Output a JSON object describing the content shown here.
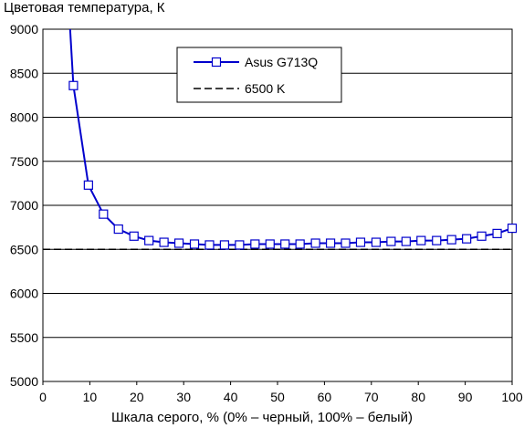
{
  "chart_data": {
    "type": "line",
    "title": "Цветовая температура, К",
    "xlabel": "Шкала серого, % (0% – черный, 100% – белый)",
    "ylabel": "",
    "xlim": [
      0,
      100
    ],
    "ylim": [
      5000,
      9000
    ],
    "xticks": [
      0,
      10,
      20,
      30,
      40,
      50,
      60,
      70,
      80,
      90,
      100
    ],
    "yticks": [
      5000,
      5500,
      6000,
      6500,
      7000,
      7500,
      8000,
      8500,
      9000
    ],
    "grid": "horizontal",
    "legend_position": "top-center",
    "series": [
      {
        "name": "Asus G713Q",
        "color": "#0000cc",
        "marker": "open-square",
        "x": [
          6.5,
          9.7,
          12.9,
          16.1,
          19.4,
          22.6,
          25.8,
          29.0,
          32.3,
          35.5,
          38.7,
          41.9,
          45.2,
          48.4,
          51.6,
          54.8,
          58.1,
          61.3,
          64.5,
          67.7,
          71.0,
          74.2,
          77.4,
          80.6,
          83.9,
          87.1,
          90.3,
          93.5,
          96.8,
          100
        ],
        "y": [
          8360,
          7230,
          6900,
          6730,
          6650,
          6600,
          6580,
          6570,
          6560,
          6550,
          6550,
          6550,
          6560,
          6560,
          6560,
          6560,
          6570,
          6570,
          6570,
          6580,
          6580,
          6590,
          6590,
          6600,
          6600,
          6610,
          6620,
          6650,
          6680,
          6740
        ],
        "line_extends_above_to": [
          5.8,
          9000
        ]
      },
      {
        "name": "6500 K",
        "color": "#000000",
        "style": "dashed",
        "x": [
          0,
          100
        ],
        "y": [
          6500,
          6500
        ]
      }
    ]
  }
}
